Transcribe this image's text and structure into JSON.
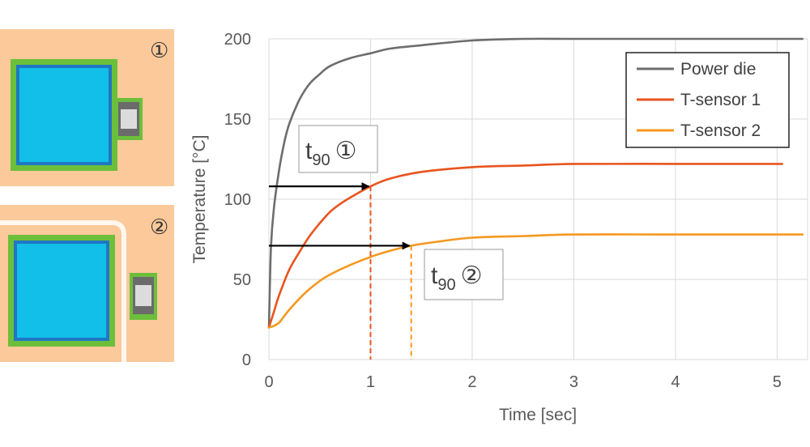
{
  "diagram": {
    "panel1_label": "①",
    "panel2_label": "②",
    "colors": {
      "board": "#fbc99a",
      "die_fill": "#12bfe8",
      "die_inner_border": "#1f77c4",
      "die_outer_border": "#6cbf3b",
      "sensor_body": "#dcdcdc",
      "trench": "#fff6ee"
    }
  },
  "chart_data": {
    "type": "line",
    "xlabel": "Time [sec]",
    "ylabel": "Temperature [°C]",
    "xlim": [
      0,
      5.3
    ],
    "ylim": [
      0,
      200
    ],
    "xticks": [
      "0",
      "1",
      "2",
      "3",
      "4",
      "5"
    ],
    "yticks": [
      "0",
      "50",
      "100",
      "150",
      "200"
    ],
    "grid": true,
    "legend_position": "top-right",
    "series": [
      {
        "name": "Power die",
        "color": "#6d6d6d",
        "x": [
          0,
          0.02,
          0.05,
          0.1,
          0.15,
          0.2,
          0.3,
          0.4,
          0.5,
          0.6,
          0.8,
          1.0,
          1.2,
          1.5,
          2.0,
          2.5,
          3.0,
          4.0,
          5.0,
          5.25
        ],
        "y": [
          20,
          70,
          95,
          118,
          135,
          147,
          162,
          172,
          178,
          183,
          188,
          191,
          194,
          196,
          199,
          200,
          200,
          200,
          200,
          200
        ]
      },
      {
        "name": "T-sensor 1",
        "color": "#e8541e",
        "x": [
          0,
          0.05,
          0.1,
          0.2,
          0.3,
          0.4,
          0.5,
          0.6,
          0.7,
          0.8,
          1.0,
          1.2,
          1.5,
          2.0,
          2.5,
          3.0,
          4.0,
          5.05
        ],
        "y": [
          20,
          30,
          40,
          56,
          67,
          77,
          85,
          92,
          97,
          101,
          108,
          113,
          117,
          120,
          121,
          122,
          122,
          122
        ]
      },
      {
        "name": "T-sensor 2",
        "color": "#f5981e",
        "x": [
          0,
          0.05,
          0.1,
          0.15,
          0.2,
          0.3,
          0.4,
          0.5,
          0.6,
          0.8,
          1.0,
          1.2,
          1.4,
          1.6,
          2.0,
          2.5,
          3.0,
          4.0,
          5.25
        ],
        "y": [
          20,
          21,
          23,
          27,
          31,
          38,
          44,
          49,
          53,
          59,
          64,
          68,
          71,
          73,
          76,
          77,
          78,
          78,
          78
        ]
      }
    ],
    "annotations": [
      {
        "label": "t",
        "subscript": "90",
        "marker": "①",
        "x": 1.0,
        "y": 108,
        "line_color": "#e8541e"
      },
      {
        "label": "t",
        "subscript": "90",
        "marker": "②",
        "x": 1.4,
        "y": 71,
        "line_color": "#f5981e"
      }
    ]
  }
}
